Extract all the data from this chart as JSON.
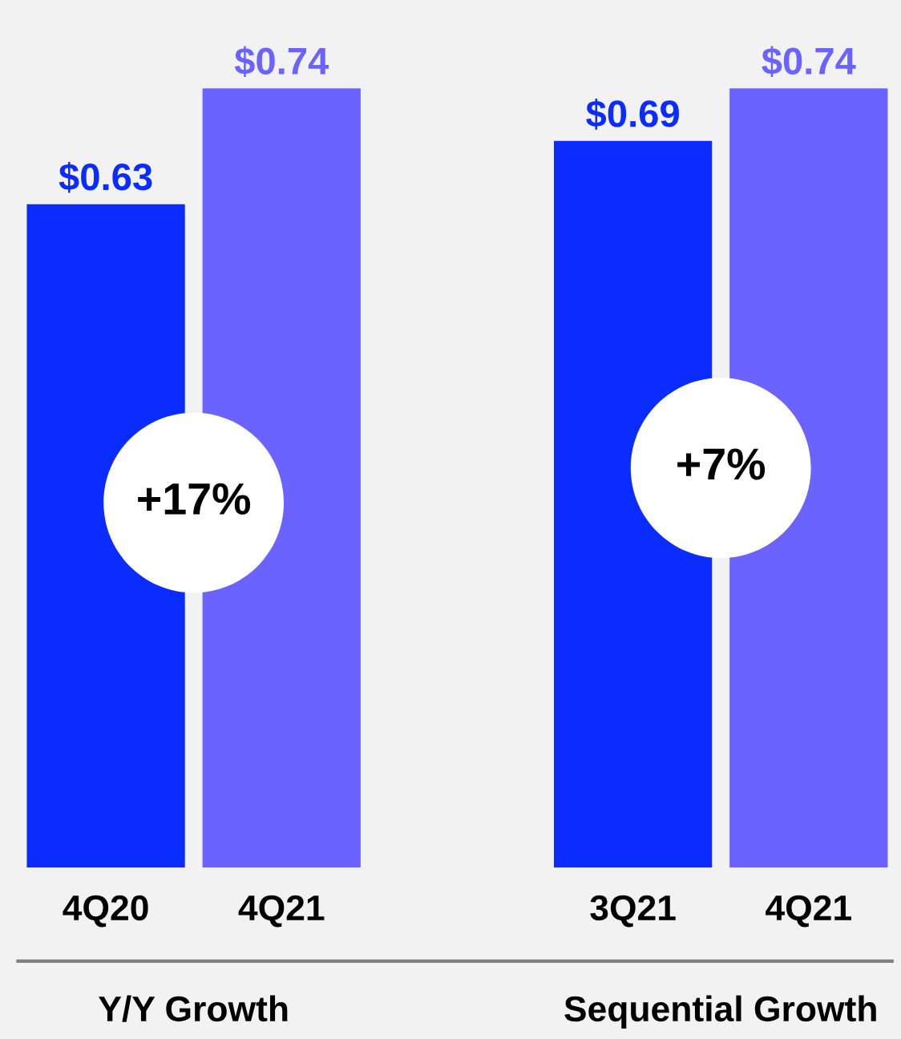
{
  "chart_data": {
    "type": "bar",
    "categories": [
      "4Q20",
      "4Q21",
      null,
      "3Q21",
      "4Q21"
    ],
    "values": [
      0.63,
      0.74,
      null,
      0.69,
      0.74
    ],
    "colors": [
      "#0a2cff",
      "#6b63ff",
      null,
      "#0a2cff",
      "#6b63ff"
    ],
    "value_labels": [
      "$0.63",
      "$0.74",
      null,
      "$0.69",
      "$0.74"
    ],
    "tick_labels": "x",
    "grid": false,
    "annotations": [
      "+17%",
      "+7%",
      "Y/Y Growth",
      "Sequential Growth"
    ]
  }
}
